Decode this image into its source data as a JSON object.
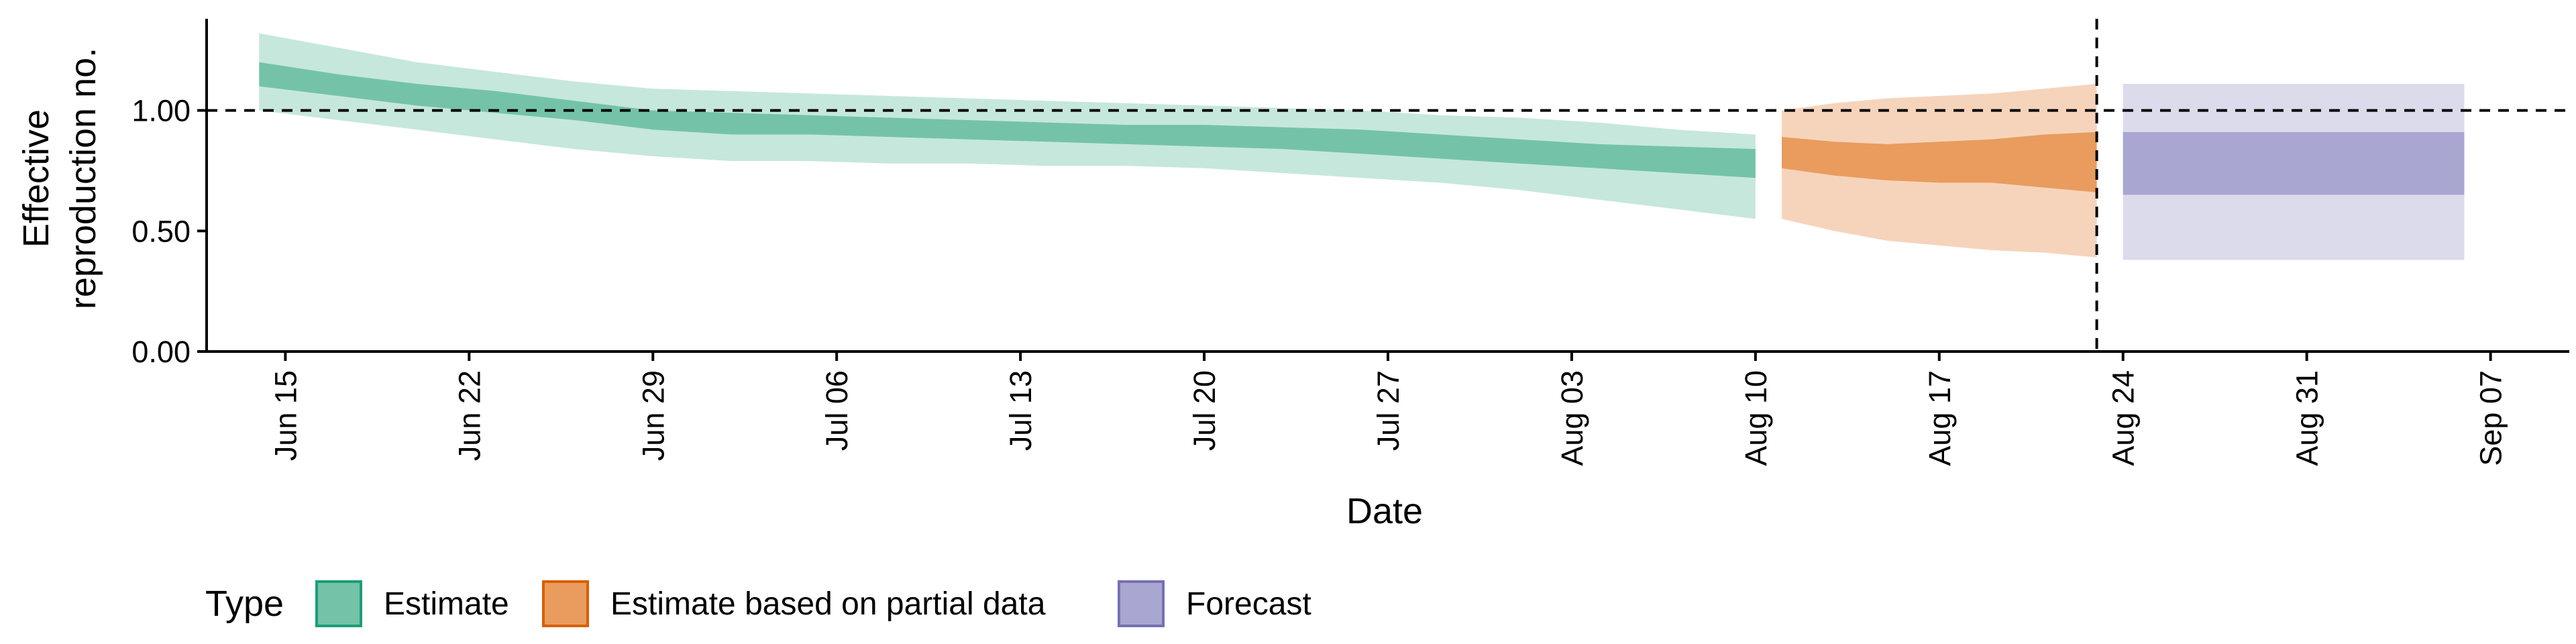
{
  "chart_data": {
    "type": "area",
    "xlabel": "Date",
    "ylabel_lines": [
      "Effective",
      "reproduction no."
    ],
    "y_ticks": [
      "0.00",
      "0.50",
      "1.00"
    ],
    "ylim": [
      0,
      1.38
    ],
    "x_domain": [
      "2020-06-12",
      "2020-09-10"
    ],
    "x_ticks": [
      {
        "date": "2020-06-15",
        "label": "Jun 15"
      },
      {
        "date": "2020-06-22",
        "label": "Jun 22"
      },
      {
        "date": "2020-06-29",
        "label": "Jun 29"
      },
      {
        "date": "2020-07-06",
        "label": "Jul 06"
      },
      {
        "date": "2020-07-13",
        "label": "Jul 13"
      },
      {
        "date": "2020-07-20",
        "label": "Jul 20"
      },
      {
        "date": "2020-07-27",
        "label": "Jul 27"
      },
      {
        "date": "2020-08-03",
        "label": "Aug 03"
      },
      {
        "date": "2020-08-10",
        "label": "Aug 10"
      },
      {
        "date": "2020-08-17",
        "label": "Aug 17"
      },
      {
        "date": "2020-08-24",
        "label": "Aug 24"
      },
      {
        "date": "2020-08-31",
        "label": "Aug 31"
      },
      {
        "date": "2020-09-07",
        "label": "Sep 07"
      }
    ],
    "reference_line_y": 1.0,
    "vertical_line_date": "2020-08-23",
    "legend": {
      "title": "Type",
      "placement": "bottom-left",
      "items": [
        {
          "label": "Estimate",
          "fill": "#74c3a8",
          "border": "#1b9e77"
        },
        {
          "label": "Estimate based on partial data",
          "fill": "#e99c5e",
          "border": "#d95f02"
        },
        {
          "label": "Forecast",
          "fill": "#a9a6d2",
          "border": "#7570b3"
        }
      ]
    },
    "series": [
      {
        "name": "Estimate",
        "outer_color": "#c6e7dc",
        "inner_color": "#74c3a8",
        "dates": [
          "2020-06-14",
          "2020-06-17",
          "2020-06-20",
          "2020-06-23",
          "2020-06-26",
          "2020-06-29",
          "2020-07-02",
          "2020-07-05",
          "2020-07-08",
          "2020-07-11",
          "2020-07-14",
          "2020-07-17",
          "2020-07-20",
          "2020-07-23",
          "2020-07-26",
          "2020-07-29",
          "2020-08-01",
          "2020-08-04",
          "2020-08-07",
          "2020-08-10"
        ],
        "outer_upper": [
          1.32,
          1.26,
          1.2,
          1.16,
          1.12,
          1.09,
          1.08,
          1.07,
          1.06,
          1.05,
          1.04,
          1.03,
          1.02,
          1.01,
          1.0,
          0.98,
          0.97,
          0.95,
          0.92,
          0.9
        ],
        "inner_upper": [
          1.2,
          1.15,
          1.11,
          1.08,
          1.04,
          1.0,
          0.99,
          0.98,
          0.97,
          0.96,
          0.95,
          0.94,
          0.94,
          0.93,
          0.92,
          0.9,
          0.88,
          0.86,
          0.85,
          0.84
        ],
        "inner_lower": [
          1.1,
          1.06,
          1.02,
          0.99,
          0.96,
          0.92,
          0.9,
          0.9,
          0.89,
          0.88,
          0.87,
          0.86,
          0.85,
          0.84,
          0.82,
          0.8,
          0.78,
          0.76,
          0.74,
          0.72
        ],
        "outer_lower": [
          1.0,
          0.96,
          0.92,
          0.88,
          0.84,
          0.81,
          0.79,
          0.79,
          0.78,
          0.78,
          0.77,
          0.77,
          0.76,
          0.74,
          0.72,
          0.7,
          0.67,
          0.63,
          0.59,
          0.55
        ]
      },
      {
        "name": "Estimate based on partial data",
        "outer_color": "#f6d4bb",
        "inner_color": "#e99c5e",
        "dates": [
          "2020-08-11",
          "2020-08-13",
          "2020-08-15",
          "2020-08-17",
          "2020-08-19",
          "2020-08-21",
          "2020-08-23"
        ],
        "outer_upper": [
          1.0,
          1.03,
          1.05,
          1.06,
          1.07,
          1.09,
          1.11
        ],
        "inner_upper": [
          0.89,
          0.87,
          0.86,
          0.87,
          0.88,
          0.9,
          0.91
        ],
        "inner_lower": [
          0.76,
          0.73,
          0.71,
          0.7,
          0.7,
          0.68,
          0.66
        ],
        "outer_lower": [
          0.55,
          0.5,
          0.46,
          0.44,
          0.42,
          0.41,
          0.39
        ]
      },
      {
        "name": "Forecast",
        "outer_color": "#dcdbec",
        "inner_color": "#a9a6d2",
        "dates": [
          "2020-08-24",
          "2020-09-06"
        ],
        "outer_upper": [
          1.11,
          1.11
        ],
        "inner_upper": [
          0.91,
          0.91
        ],
        "inner_lower": [
          0.65,
          0.65
        ],
        "outer_lower": [
          0.38,
          0.38
        ]
      }
    ]
  }
}
